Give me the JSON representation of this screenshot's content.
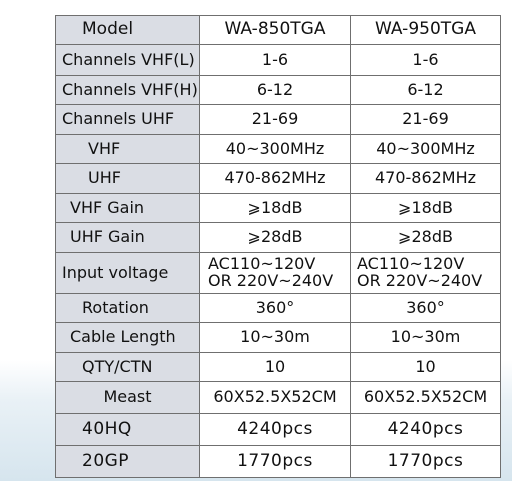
{
  "table": {
    "header": {
      "label": "Model",
      "col1": "WA-850TGA",
      "col2": "WA-950TGA"
    },
    "rows": [
      {
        "label": "Channels VHF(L)",
        "v1": "1-6",
        "v2": "1-6"
      },
      {
        "label": "Channels VHF(H)",
        "v1": "6-12",
        "v2": "6-12"
      },
      {
        "label": "Channels UHF",
        "v1": "21-69",
        "v2": "21-69"
      },
      {
        "label": "VHF",
        "v1": "40~300MHz",
        "v2": "40~300MHz"
      },
      {
        "label": "UHF",
        "v1": "470-862MHz",
        "v2": "470-862MHz"
      },
      {
        "label": "VHF Gain",
        "v1": "⩾18dB",
        "v2": "⩾18dB"
      },
      {
        "label": "UHF Gain",
        "v1": "⩾28dB",
        "v2": "⩾28dB"
      },
      {
        "label": "Input voltage",
        "v1_line1": "AC110~120V",
        "v1_line2": "OR 220V~240V",
        "v2_line1": "AC110~120V",
        "v2_line2": "OR 220V~240V"
      },
      {
        "label": "Rotation",
        "v1": "360°",
        "v2": "360°"
      },
      {
        "label": "Cable Length",
        "v1": "10~30m",
        "v2": "10~30m"
      },
      {
        "label": "QTY/CTN",
        "v1": "10",
        "v2": "10"
      },
      {
        "label": "Meast",
        "v1": "60X52.5X52CM",
        "v2": "60X52.5X52CM"
      },
      {
        "label": "40HQ",
        "v1": "4240pcs",
        "v2": "4240pcs"
      },
      {
        "label": "20GP",
        "v1": "1770pcs",
        "v2": "1770pcs"
      }
    ]
  }
}
